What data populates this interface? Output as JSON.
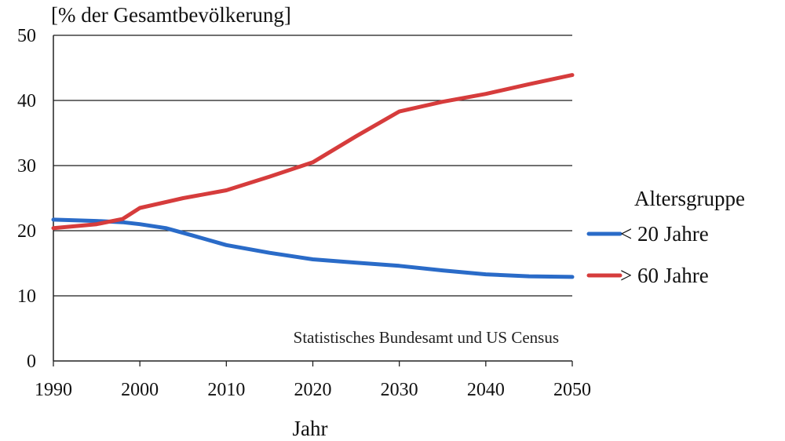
{
  "chart_data": {
    "type": "line",
    "ylabel": "[% der Gesamtbevölkerung]",
    "xlabel": "Jahr",
    "source_note": "Statistisches Bundesamt und US Census",
    "legend_title": "Altersgruppe",
    "legend_position": "right",
    "xlim": [
      1990,
      2050
    ],
    "ylim": [
      0,
      50
    ],
    "x_ticks": [
      "1990",
      "2000",
      "2010",
      "2020",
      "2030",
      "2040",
      "2050"
    ],
    "y_ticks": [
      "0",
      "10",
      "20",
      "30",
      "40",
      "50"
    ],
    "grid": "horizontal",
    "series": [
      {
        "name": "< 20 Jahre",
        "color": "#2a6bc8",
        "points": [
          [
            1990,
            21.7
          ],
          [
            1995,
            21.5
          ],
          [
            1998,
            21.3
          ],
          [
            2000,
            21.0
          ],
          [
            2003,
            20.4
          ],
          [
            2006,
            19.3
          ],
          [
            2010,
            17.8
          ],
          [
            2015,
            16.6
          ],
          [
            2020,
            15.6
          ],
          [
            2025,
            15.1
          ],
          [
            2030,
            14.6
          ],
          [
            2035,
            13.9
          ],
          [
            2040,
            13.3
          ],
          [
            2045,
            13.0
          ],
          [
            2050,
            12.9
          ]
        ]
      },
      {
        "name": "> 60 Jahre",
        "color": "#d63c3c",
        "points": [
          [
            1990,
            20.4
          ],
          [
            1995,
            21.0
          ],
          [
            1998,
            21.8
          ],
          [
            2000,
            23.5
          ],
          [
            2005,
            25.0
          ],
          [
            2010,
            26.2
          ],
          [
            2015,
            28.3
          ],
          [
            2020,
            30.5
          ],
          [
            2025,
            34.5
          ],
          [
            2030,
            38.3
          ],
          [
            2035,
            39.8
          ],
          [
            2040,
            41.0
          ],
          [
            2045,
            42.5
          ],
          [
            2050,
            43.9
          ]
        ]
      }
    ]
  }
}
